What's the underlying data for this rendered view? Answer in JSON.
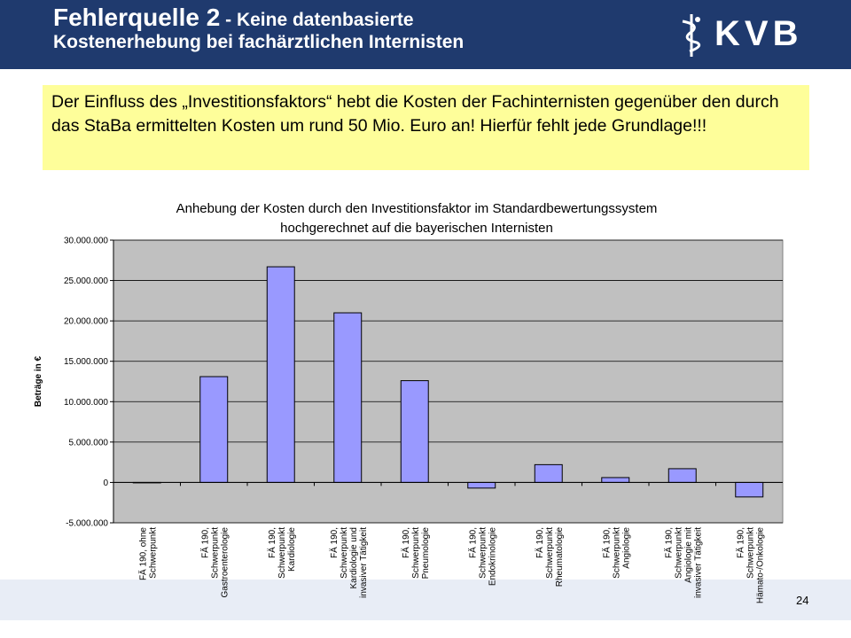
{
  "header": {
    "title_main": "Fehlerquelle 2",
    "title_sub_1": " - Keine datenbasierte",
    "title_sub_2": "Kostenerhebung bei fachärztlichen Internisten",
    "logo_text": "KVB",
    "background_color": "#1f3a6e"
  },
  "callout": {
    "text": "Der Einfluss des „Investitionsfaktors“ hebt die Kosten der Fachinternisten gegenüber den durch das StaBa ermittelten Kosten um rund 50 Mio. Euro an! Hierfür fehlt jede Grundlage!!!",
    "background_color": "#fefe9a"
  },
  "chart_data": {
    "type": "bar",
    "title_line1": "Anhebung der Kosten durch den Investitionsfaktor im Standardbewertungssystem",
    "title_line2": "hochgerechnet auf die bayerischen Internisten",
    "ylabel": "Beträge in €",
    "ylim": [
      -5000000,
      30000000
    ],
    "yticks": [
      -5000000,
      0,
      5000000,
      10000000,
      15000000,
      20000000,
      25000000,
      30000000
    ],
    "ytick_labels": [
      "-5.000.000",
      "0",
      "5.000.000",
      "10.000.000",
      "15.000.000",
      "20.000.000",
      "25.000.000",
      "30.000.000"
    ],
    "grid": true,
    "plot_background": "#c0c0c0",
    "bar_color": "#9999ff",
    "categories": [
      [
        "FÄ 190, ohne",
        "Schwerpunkt"
      ],
      [
        "FÄ 190,",
        "Schwerpunkt",
        "Gastroenterologie"
      ],
      [
        "FÄ 190,",
        "Schwerpunkt",
        "Kardiologie"
      ],
      [
        "FÄ 190,",
        "Schwerpunkt",
        "Kardiologie und",
        "invasiver Tätigkeit"
      ],
      [
        "FÄ 190,",
        "Schwerpunkt",
        "Pneumologie"
      ],
      [
        "FÄ 190,",
        "Schwerpunkt",
        "Endokrinologie"
      ],
      [
        "FÄ 190,",
        "Schwerpunkt",
        "Rheumatologie"
      ],
      [
        "FÄ 190,",
        "Schwerpunkt",
        "Angiologie"
      ],
      [
        "FÄ 190,",
        "Schwerpunkt",
        "Angiologie mit",
        "invasiver Tätigkeit"
      ],
      [
        "FÄ 190,",
        "Schwerpunkt",
        "Hämato-/Onkologie"
      ]
    ],
    "values": [
      0,
      13100000,
      26700000,
      21000000,
      12600000,
      -700000,
      2200000,
      600000,
      1700000,
      -1800000
    ]
  },
  "footer": {
    "page_number": "24"
  }
}
